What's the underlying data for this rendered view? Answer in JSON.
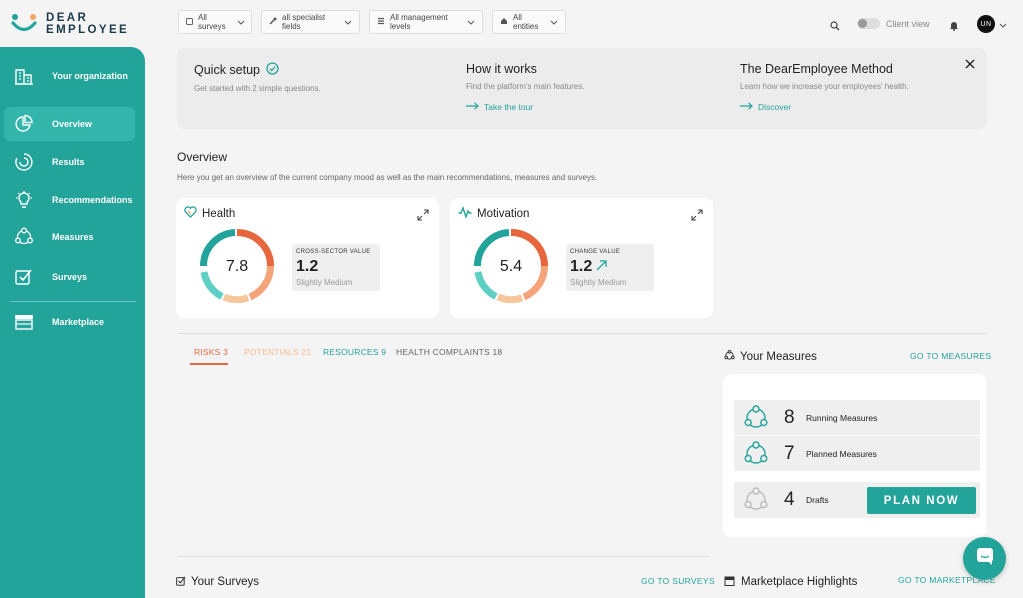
{
  "brand": {
    "line1": "DEAR",
    "line2": "EMPLOYEE"
  },
  "filters": [
    {
      "label": "All surveys",
      "icon": "survey-icon"
    },
    {
      "label": "all specialist fields",
      "icon": "wrench-icon"
    },
    {
      "label": "All management levels",
      "icon": "list-icon"
    },
    {
      "label": "All entities",
      "icon": "home-icon"
    }
  ],
  "header": {
    "client_view_label": "Client view",
    "avatar_initials": "UN"
  },
  "sidebar": {
    "items": [
      {
        "label": "Your organization",
        "icon": "building-icon"
      },
      {
        "label": "Overview",
        "icon": "pie-chart-icon",
        "active": true
      },
      {
        "label": "Results",
        "icon": "results-icon"
      },
      {
        "label": "Recommendations",
        "icon": "lightbulb-icon"
      },
      {
        "label": "Measures",
        "icon": "measures-icon"
      },
      {
        "label": "Surveys",
        "icon": "checkbox-icon"
      },
      {
        "label": "Marketplace",
        "icon": "store-icon"
      }
    ]
  },
  "quick_setup": {
    "title": "Quick setup",
    "subtitle": "Get started with 2 simple questions."
  },
  "how_it_works": {
    "title": "How it works",
    "subtitle": "Find the platform's main features.",
    "link": "Take the tour"
  },
  "method": {
    "title": "The DearEmployee Method",
    "subtitle": "Learn how we increase your employees' health.",
    "link": "Discover"
  },
  "overview": {
    "title": "Overview",
    "subtitle": "Here you get an overview of the current company mood as well as the main recommendations, measures and surveys."
  },
  "health": {
    "title": "Health",
    "score": "7.8",
    "box_label": "CROSS-SECTOR VALUE",
    "box_value": "1.2",
    "box_sub": "Slightly Medium"
  },
  "motivation": {
    "title": "Motivation",
    "score": "5.4",
    "box_label": "CHANGE VALUE",
    "box_value": "1.2",
    "box_sub": "Slightly Medium"
  },
  "tabs": [
    {
      "label": "RISKS",
      "count": "3",
      "color": "#e8663d"
    },
    {
      "label": "POTENTIALS",
      "count": "21",
      "color": "#f5b98a"
    },
    {
      "label": "RESOURCES",
      "count": "9",
      "color": "#23a49b"
    },
    {
      "label": "HEALTH COMPLAINTS",
      "count": "18",
      "color": "#666666"
    }
  ],
  "your_measures": {
    "title": "Your Measures",
    "link": "GO TO MEASURES",
    "running_count": "8",
    "running_label": "Running Measures",
    "planned_count": "7",
    "planned_label": "Planned Measures",
    "drafts_count": "4",
    "drafts_label": "Drafts",
    "plan_button": "PLAN NOW"
  },
  "surveys": {
    "title": "Your Surveys",
    "link": "GO TO SURVEYS"
  },
  "marketplace": {
    "title": "Marketplace Highlights",
    "link": "GO TO MARKETPLACE"
  },
  "colors": {
    "accent": "#23a49b",
    "orange": "#e8663d",
    "peach": "#f5b98a",
    "teal_light": "#5dcfc4"
  }
}
